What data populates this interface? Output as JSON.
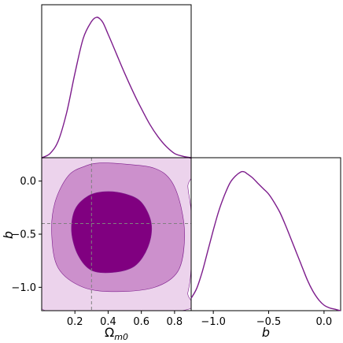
{
  "colors": {
    "line": "#7d1d8c",
    "fill_inner": "#800080",
    "fill_mid": "#cc90cc",
    "fill_outer": "#ecd3ec",
    "marker": "#808080"
  },
  "chart_data": [
    {
      "type": "line",
      "panel": "marginal-omega",
      "xlim": [
        0.0,
        0.9
      ],
      "x": [
        0.0,
        0.05,
        0.1,
        0.15,
        0.2,
        0.25,
        0.3,
        0.33,
        0.35,
        0.37,
        0.4,
        0.45,
        0.5,
        0.55,
        0.6,
        0.65,
        0.7,
        0.75,
        0.8,
        0.85,
        0.9
      ],
      "y": [
        0.0,
        0.03,
        0.12,
        0.32,
        0.6,
        0.85,
        0.97,
        1.0,
        0.99,
        0.96,
        0.88,
        0.74,
        0.6,
        0.47,
        0.35,
        0.24,
        0.15,
        0.08,
        0.03,
        0.01,
        0.0
      ]
    },
    {
      "type": "line",
      "panel": "marginal-b",
      "xlim": [
        -1.2,
        0.15
      ],
      "x": [
        -1.2,
        -1.15,
        -1.1,
        -1.05,
        -1.0,
        -0.95,
        -0.9,
        -0.85,
        -0.8,
        -0.75,
        -0.72,
        -0.7,
        -0.65,
        -0.6,
        -0.55,
        -0.5,
        -0.45,
        -0.4,
        -0.35,
        -0.3,
        -0.25,
        -0.2,
        -0.15,
        -0.1,
        -0.05,
        0.0,
        0.05,
        0.1,
        0.15
      ],
      "y": [
        0.09,
        0.16,
        0.28,
        0.43,
        0.58,
        0.72,
        0.83,
        0.92,
        0.97,
        1.0,
        1.0,
        0.99,
        0.96,
        0.92,
        0.88,
        0.84,
        0.78,
        0.71,
        0.62,
        0.52,
        0.42,
        0.32,
        0.22,
        0.14,
        0.08,
        0.04,
        0.02,
        0.01,
        0.0
      ]
    },
    {
      "type": "contour",
      "panel": "joint",
      "xlabel": "Ωm0",
      "ylabel": "b",
      "xlim": [
        0.0,
        0.9
      ],
      "ylim": [
        -1.22,
        0.22
      ],
      "xticks": [
        0.2,
        0.4,
        0.6,
        0.8
      ],
      "xtick_labels": [
        "0.2",
        "0.4",
        "0.6",
        "0.8"
      ],
      "yticks": [
        0.0,
        -0.5,
        -1.0
      ],
      "ytick_labels": [
        "0.0",
        "−0.5",
        "−1.0"
      ],
      "marker": {
        "x": 0.3,
        "y": -0.4
      },
      "contours": [
        {
          "level": "outer",
          "points": [
            [
              0.02,
              0.22
            ],
            [
              0.88,
              0.22
            ],
            [
              0.88,
              -0.05
            ],
            [
              0.9,
              -0.3
            ],
            [
              0.9,
              -0.8
            ],
            [
              0.88,
              -1.05
            ],
            [
              0.84,
              -1.22
            ],
            [
              0.02,
              -1.22
            ],
            [
              0.0,
              -0.6
            ],
            [
              0.0,
              0.0
            ]
          ]
        },
        {
          "level": "middle",
          "points": [
            [
              0.35,
              0.17
            ],
            [
              0.5,
              0.16
            ],
            [
              0.68,
              0.12
            ],
            [
              0.78,
              0.0
            ],
            [
              0.84,
              -0.25
            ],
            [
              0.86,
              -0.55
            ],
            [
              0.82,
              -0.85
            ],
            [
              0.68,
              -1.0
            ],
            [
              0.45,
              -1.04
            ],
            [
              0.25,
              -1.0
            ],
            [
              0.1,
              -0.82
            ],
            [
              0.06,
              -0.5
            ],
            [
              0.08,
              -0.2
            ],
            [
              0.16,
              0.05
            ],
            [
              0.26,
              0.14
            ]
          ]
        },
        {
          "level": "inner",
          "points": [
            [
              0.38,
              -0.1
            ],
            [
              0.5,
              -0.12
            ],
            [
              0.6,
              -0.2
            ],
            [
              0.66,
              -0.4
            ],
            [
              0.64,
              -0.62
            ],
            [
              0.56,
              -0.8
            ],
            [
              0.43,
              -0.86
            ],
            [
              0.3,
              -0.84
            ],
            [
              0.22,
              -0.7
            ],
            [
              0.18,
              -0.48
            ],
            [
              0.2,
              -0.27
            ],
            [
              0.28,
              -0.14
            ]
          ]
        }
      ]
    },
    {
      "type": "axes",
      "panel": "marginal-b-axis",
      "xlabel": "b",
      "xticks": [
        -1.0,
        -0.5,
        0.0
      ],
      "xtick_labels": [
        "−1.0",
        "−0.5",
        "0.0"
      ]
    }
  ]
}
